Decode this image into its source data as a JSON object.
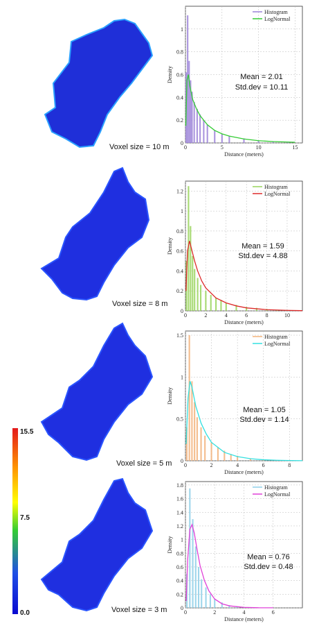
{
  "panels": [
    {
      "voxel_label": "Voxel size = 10 m",
      "mean_label": "Mean = 2.01",
      "std_label": "Std.dev = 10.11",
      "map_fill": "#1f2fd8",
      "map_accent": [
        "#2aa0ff",
        "#33cc66",
        "#c8e64a"
      ]
    },
    {
      "voxel_label": "Voxel size = 8 m",
      "mean_label": "Mean = 1.59",
      "std_label": "Std.dev = 4.88",
      "map_fill": "#1f2fe0",
      "map_accent": [
        "#2a55ff"
      ]
    },
    {
      "voxel_label": "Voxel size = 5 m",
      "mean_label": "Mean = 1.05",
      "std_label": "Std.dev = 1.14",
      "map_fill": "#1f2fe0",
      "map_accent": [
        "#2a55ff"
      ]
    },
    {
      "voxel_label": "Voxel size = 3 m",
      "mean_label": "Mean = 0.76",
      "std_label": "Std.dev = 0.48",
      "map_fill": "#1f2fe0",
      "map_accent": [
        "#2a55ff"
      ]
    }
  ],
  "colorbar": {
    "max_label": "15.5",
    "mid_label": "7.5",
    "min_label": "0.0"
  },
  "chart_data": [
    {
      "type": "bar",
      "xlabel": "Distance (meters)",
      "ylabel": "Density",
      "xlim": [
        0,
        16
      ],
      "ylim": [
        0,
        1.2
      ],
      "xticks": [
        0,
        5,
        10,
        15
      ],
      "yticks": [
        0,
        0.2,
        0.4,
        0.6,
        0.8,
        1
      ],
      "grid": true,
      "legend_position": "top-right",
      "series": [
        {
          "name": "Histogram",
          "color": "#9b82d8",
          "x": [
            0.1,
            0.3,
            0.5,
            0.7,
            0.9,
            1.2,
            1.6,
            2.0,
            2.5,
            3.0,
            4.0,
            5.0,
            6.0,
            8.0,
            10.0,
            12.0,
            14.0
          ],
          "values": [
            0.62,
            1.12,
            0.72,
            0.55,
            0.45,
            0.36,
            0.3,
            0.25,
            0.2,
            0.16,
            0.11,
            0.08,
            0.06,
            0.04,
            0.02,
            0.01,
            0.005
          ]
        },
        {
          "name": "LogNormal",
          "color": "#33cc33",
          "x": [
            0.05,
            0.2,
            0.4,
            0.6,
            1.0,
            1.5,
            2.0,
            3.0,
            4.0,
            5.0,
            6.0,
            8.0,
            10.0,
            12.0,
            15.0
          ],
          "values": [
            0.15,
            0.55,
            0.6,
            0.5,
            0.38,
            0.3,
            0.24,
            0.16,
            0.11,
            0.08,
            0.06,
            0.035,
            0.02,
            0.012,
            0.006
          ]
        }
      ]
    },
    {
      "type": "bar",
      "xlabel": "Distance (meters)",
      "ylabel": "Density",
      "xlim": [
        0,
        11.5
      ],
      "ylim": [
        0,
        1.3
      ],
      "xticks": [
        0,
        2,
        4,
        6,
        8,
        10
      ],
      "yticks": [
        0,
        0.2,
        0.4,
        0.6,
        0.8,
        1,
        1.2
      ],
      "grid": true,
      "legend_position": "top-right",
      "series": [
        {
          "name": "Histogram",
          "color": "#99d45a",
          "x": [
            0.1,
            0.3,
            0.5,
            0.7,
            0.9,
            1.2,
            1.5,
            2.0,
            2.5,
            3.0,
            3.5,
            4.0,
            5.0,
            6.0,
            7.0,
            8.0,
            9.0,
            10.0,
            11.0
          ],
          "values": [
            0.5,
            1.25,
            0.85,
            0.55,
            0.42,
            0.33,
            0.26,
            0.2,
            0.16,
            0.13,
            0.11,
            0.08,
            0.06,
            0.04,
            0.03,
            0.02,
            0.01,
            0.005,
            0.002
          ]
        },
        {
          "name": "LogNormal",
          "color": "#dd2a2a",
          "x": [
            0.05,
            0.2,
            0.4,
            0.6,
            0.9,
            1.2,
            1.6,
            2.0,
            3.0,
            4.0,
            5.0,
            6.0,
            8.0,
            10.0,
            11.5
          ],
          "values": [
            0.2,
            0.6,
            0.7,
            0.62,
            0.5,
            0.4,
            0.3,
            0.23,
            0.13,
            0.08,
            0.05,
            0.03,
            0.012,
            0.005,
            0.002
          ]
        }
      ]
    },
    {
      "type": "bar",
      "xlabel": "Distance (meters)",
      "ylabel": "Density",
      "xlim": [
        0,
        9
      ],
      "ylim": [
        0,
        1.55
      ],
      "xticks": [
        0,
        2,
        4,
        6,
        8
      ],
      "yticks": [
        0,
        0.5,
        1,
        1.5
      ],
      "grid": true,
      "legend_position": "top-right",
      "series": [
        {
          "name": "Histogram",
          "color": "#f2b27a",
          "x": [
            0.1,
            0.3,
            0.5,
            0.7,
            0.9,
            1.2,
            1.5,
            2.0,
            2.5,
            3.0,
            3.5,
            4.0,
            5.0,
            6.0,
            7.0,
            8.0
          ],
          "values": [
            0.4,
            1.5,
            0.95,
            0.7,
            0.52,
            0.4,
            0.3,
            0.22,
            0.16,
            0.12,
            0.08,
            0.06,
            0.03,
            0.015,
            0.008,
            0.003
          ]
        },
        {
          "name": "LogNormal",
          "color": "#33e0e0",
          "x": [
            0.05,
            0.2,
            0.35,
            0.5,
            0.8,
            1.2,
            1.6,
            2.0,
            3.0,
            4.0,
            5.0,
            6.0,
            7.0,
            8.0,
            9.0
          ],
          "values": [
            0.2,
            0.75,
            0.95,
            0.88,
            0.65,
            0.45,
            0.32,
            0.22,
            0.1,
            0.05,
            0.025,
            0.012,
            0.006,
            0.003,
            0.001
          ]
        }
      ]
    },
    {
      "type": "bar",
      "xlabel": "Distance (meters)",
      "ylabel": "Density",
      "xlim": [
        0,
        8
      ],
      "ylim": [
        0,
        1.85
      ],
      "xticks": [
        0,
        2,
        4,
        6
      ],
      "yticks": [
        0,
        0.2,
        0.4,
        0.6,
        0.8,
        1,
        1.2,
        1.4,
        1.6,
        1.8
      ],
      "grid": true,
      "legend_position": "top-right",
      "series": [
        {
          "name": "Histogram",
          "color": "#8ecfe8",
          "x": [
            0.1,
            0.3,
            0.5,
            0.7,
            0.9,
            1.1,
            1.4,
            1.7,
            2.0,
            2.5,
            3.0,
            3.5,
            4.0,
            5.0
          ],
          "values": [
            0.5,
            1.75,
            1.3,
            0.9,
            0.6,
            0.42,
            0.3,
            0.2,
            0.13,
            0.08,
            0.04,
            0.02,
            0.01,
            0.003
          ]
        },
        {
          "name": "LogNormal",
          "color": "#e040d8",
          "x": [
            0.05,
            0.15,
            0.3,
            0.45,
            0.6,
            0.8,
            1.0,
            1.3,
            1.6,
            2.0,
            2.5,
            3.0,
            4.0,
            5.0,
            6.0
          ],
          "values": [
            0.1,
            0.7,
            1.15,
            1.22,
            1.1,
            0.85,
            0.62,
            0.4,
            0.25,
            0.13,
            0.06,
            0.03,
            0.008,
            0.002,
            0.001
          ]
        }
      ]
    }
  ]
}
